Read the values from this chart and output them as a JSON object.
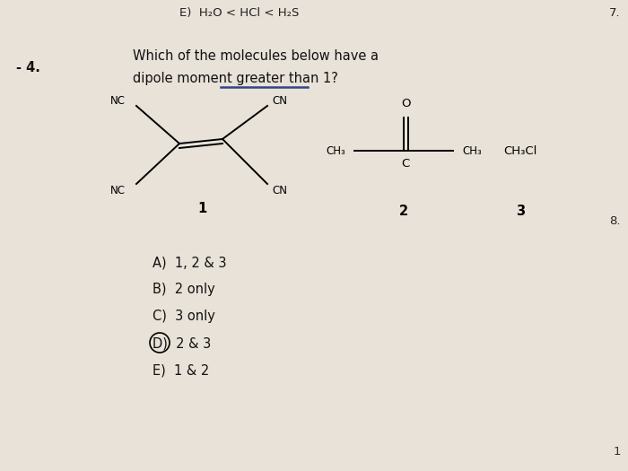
{
  "background_color": "#e8e2d8",
  "top_text": "E)  H₂O < HCl < H₂S",
  "question_number": "- 4.",
  "question_text_line1": "Which of the molecules below have a",
  "question_text_line2": "dipole moment greater than 1?",
  "underline_color": "#334488",
  "answers": [
    "A)  1, 2 & 3",
    "B)  2 only",
    "C)  3 only",
    "D)  2 & 3",
    "E)  1 & 2"
  ],
  "right_number_top": "7.",
  "right_number_mid": "8.",
  "page_number": "1"
}
